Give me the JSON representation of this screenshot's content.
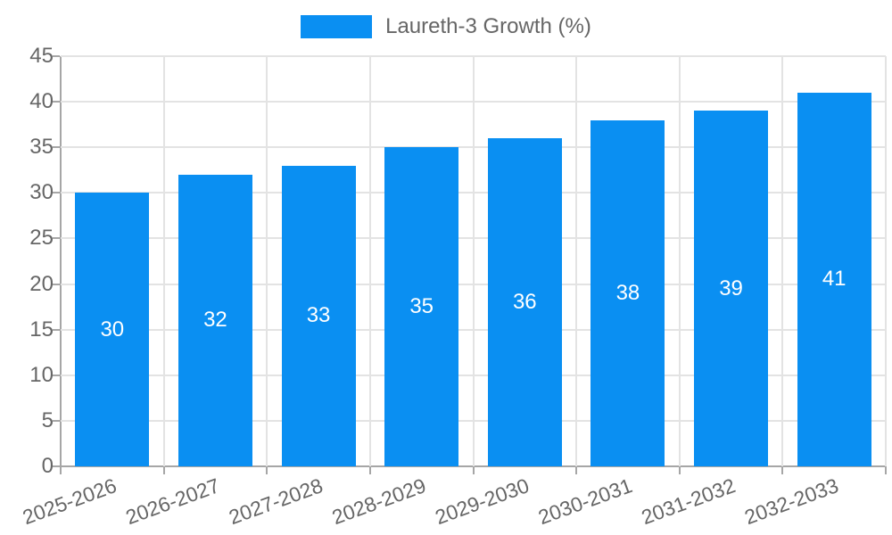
{
  "legend": {
    "label": "Laureth-3 Growth (%)"
  },
  "colors": {
    "bar": "#0a8ff2",
    "grid": "#e3e3e3",
    "axis": "#a6a6a6",
    "tick_text": "#666666",
    "value_text": "#ffffff"
  },
  "chart_data": {
    "type": "bar",
    "title": "",
    "categories": [
      "2025-2026",
      "2026-2027",
      "2027-2028",
      "2028-2029",
      "2029-2030",
      "2030-2031",
      "2031-2032",
      "2032-2033"
    ],
    "series": [
      {
        "name": "Laureth-3 Growth (%)",
        "values": [
          30,
          32,
          33,
          35,
          36,
          38,
          39,
          41
        ]
      }
    ],
    "value_labels": [
      "30",
      "32",
      "33",
      "35",
      "36",
      "38",
      "39",
      "41"
    ],
    "xlabel": "",
    "ylabel": "",
    "ylim": [
      0,
      45
    ],
    "ytick_step": 5,
    "yticks": [
      0,
      5,
      10,
      15,
      20,
      25,
      30,
      35,
      40,
      45
    ],
    "grid": true,
    "legend_position": "top",
    "bar_color": "#0a8ff2",
    "value_label_position": "center-of-bar",
    "xtick_rotation_deg": -20
  }
}
